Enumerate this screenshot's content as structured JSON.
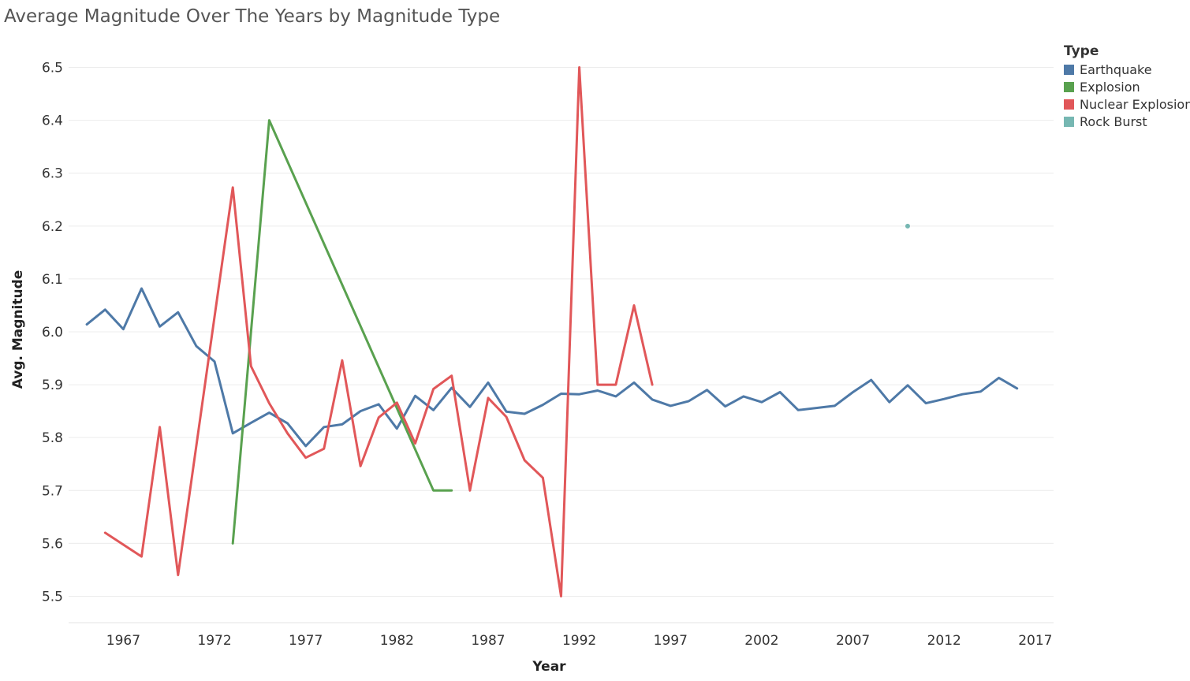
{
  "chart_data": {
    "type": "line",
    "title": "Average Magnitude Over The Years by Magnitude Type",
    "xlabel": "Year",
    "ylabel": "Avg. Magnitude",
    "xlim": [
      1964,
      2018
    ],
    "ylim": [
      5.45,
      6.55
    ],
    "x_ticks": [
      "1967",
      "1972",
      "1977",
      "1982",
      "1987",
      "1992",
      "1997",
      "2002",
      "2007",
      "2012",
      "2017"
    ],
    "y_ticks": [
      "5.5",
      "5.6",
      "5.7",
      "5.8",
      "5.9",
      "6.0",
      "6.1",
      "6.2",
      "6.3",
      "6.4",
      "6.5"
    ],
    "grid": true,
    "legend": {
      "title": "Type",
      "placement": "right"
    },
    "series": [
      {
        "name": "Earthquake",
        "color": "#4e79a7",
        "x": [
          1965,
          1966,
          1967,
          1968,
          1969,
          1970,
          1971,
          1972,
          1973,
          1974,
          1975,
          1976,
          1977,
          1978,
          1979,
          1980,
          1981,
          1982,
          1983,
          1984,
          1985,
          1986,
          1987,
          1988,
          1989,
          1990,
          1991,
          1992,
          1993,
          1994,
          1995,
          1996,
          1997,
          1998,
          1999,
          2000,
          2001,
          2002,
          2003,
          2004,
          2006,
          2007,
          2008,
          2009,
          2010,
          2011,
          2012,
          2013,
          2014,
          2015,
          2016
        ],
        "values": [
          6.014,
          6.042,
          6.005,
          6.082,
          6.01,
          6.037,
          5.973,
          5.944,
          5.808,
          5.828,
          5.847,
          5.827,
          5.784,
          5.82,
          5.825,
          5.85,
          5.863,
          5.817,
          5.879,
          5.852,
          5.894,
          5.858,
          5.904,
          5.849,
          5.845,
          5.862,
          5.883,
          5.882,
          5.889,
          5.878,
          5.904,
          5.872,
          5.86,
          5.869,
          5.89,
          5.859,
          5.878,
          5.867,
          5.886,
          5.852,
          5.86,
          5.886,
          5.909,
          5.867,
          5.899,
          5.865,
          5.873,
          5.882,
          5.887,
          5.913,
          5.893
        ]
      },
      {
        "name": "Explosion",
        "color": "#59a14f",
        "x": [
          1973,
          1975,
          1984,
          1985
        ],
        "values": [
          5.6,
          6.4,
          5.7,
          5.7
        ]
      },
      {
        "name": "Nuclear Explosion",
        "color": "#e15759",
        "x": [
          1966,
          1968,
          1969,
          1970,
          1973,
          1974,
          1975,
          1976,
          1977,
          1978,
          1979,
          1980,
          1981,
          1982,
          1983,
          1984,
          1985,
          1986,
          1987,
          1988,
          1989,
          1990,
          1991,
          1992,
          1993,
          1994,
          1995,
          1996
        ],
        "values": [
          5.62,
          5.575,
          5.82,
          5.54,
          6.273,
          5.935,
          5.865,
          5.808,
          5.762,
          5.779,
          5.946,
          5.746,
          5.838,
          5.866,
          5.789,
          5.892,
          5.917,
          5.7,
          5.875,
          5.839,
          5.757,
          5.724,
          5.5,
          6.5,
          5.9,
          5.9,
          6.05,
          5.9
        ]
      },
      {
        "name": "Rock Burst",
        "color": "#76b7b2",
        "x": [
          2010
        ],
        "values": [
          6.2
        ]
      }
    ]
  }
}
